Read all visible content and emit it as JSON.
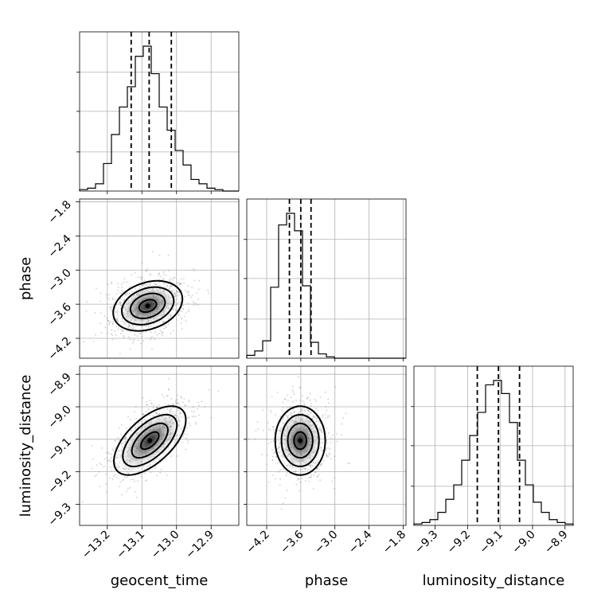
{
  "chart_data": {
    "type": "corner",
    "parameters": [
      "geocent_time",
      "phase",
      "luminosity_distance"
    ],
    "axis_labels": {
      "geocent_time": "geocent_time",
      "phase": "phase",
      "luminosity_distance": "luminosity_distance"
    },
    "ranges": {
      "geocent_time": [
        -13.28,
        -12.82
      ],
      "phase": [
        -4.55,
        -1.75
      ],
      "luminosity_distance": [
        -9.365,
        -8.875
      ]
    },
    "ticks": {
      "geocent_time": [
        -13.2,
        -13.1,
        -13.0,
        -12.9
      ],
      "phase": [
        -4.2,
        -3.6,
        -3.0,
        -2.4,
        -1.8
      ],
      "luminosity_distance": [
        -9.3,
        -9.2,
        -9.1,
        -9.0,
        -8.9
      ]
    },
    "tick_labels": {
      "geocent_time": [
        "−13.2",
        "−13.1",
        "−13.0",
        "−12.9"
      ],
      "phase": [
        "−4.2",
        "−3.6",
        "−3.0",
        "−2.4",
        "−1.8"
      ],
      "luminosity_distance": [
        "−9.3",
        "−9.2",
        "−9.1",
        "−9.0",
        "−8.9"
      ]
    },
    "quantiles": {
      "geocent_time": [
        -13.131,
        -13.079,
        -13.015
      ],
      "phase": [
        -3.8,
        -3.6,
        -3.42
      ],
      "luminosity_distance": [
        -9.17,
        -9.105,
        -9.04
      ]
    },
    "histograms": {
      "geocent_time": [
        0.01,
        0.02,
        0.05,
        0.19,
        0.39,
        0.58,
        0.72,
        0.93,
        1.0,
        0.81,
        0.58,
        0.42,
        0.28,
        0.18,
        0.08,
        0.05,
        0.02,
        0.01,
        0.0,
        0.0
      ],
      "phase": [
        0.02,
        0.05,
        0.12,
        0.49,
        0.92,
        1.0,
        0.88,
        0.5,
        0.11,
        0.03,
        0.01,
        0.0,
        0.0,
        0.0,
        0.0,
        0.0,
        0.0,
        0.0,
        0.0,
        0.0
      ],
      "luminosity_distance": [
        0.01,
        0.02,
        0.04,
        0.09,
        0.18,
        0.28,
        0.45,
        0.62,
        0.78,
        0.97,
        1.0,
        0.91,
        0.71,
        0.45,
        0.28,
        0.16,
        0.09,
        0.04,
        0.02,
        0.01
      ]
    },
    "pairs": [
      {
        "x": "geocent_time",
        "y": "phase",
        "mean": [
          -13.083,
          -3.63
        ],
        "sigma": [
          0.05,
          0.22
        ],
        "rho": 0.28
      },
      {
        "x": "geocent_time",
        "y": "luminosity_distance",
        "mean": [
          -13.077,
          -9.104
        ],
        "sigma": [
          0.052,
          0.053
        ],
        "rho": 0.6
      },
      {
        "x": "phase",
        "y": "luminosity_distance",
        "mean": [
          -3.61,
          -9.104
        ],
        "sigma": [
          0.22,
          0.053
        ],
        "rho": 0.0
      }
    ],
    "contour_levels_sigma": [
      0.5,
      1.0,
      1.5,
      2.0
    ],
    "grid": true
  }
}
